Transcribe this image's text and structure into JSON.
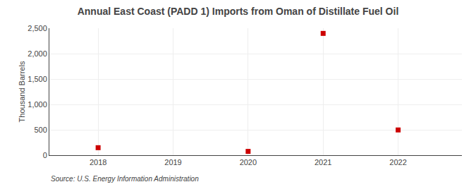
{
  "chart_data": {
    "type": "scatter",
    "title": "Annual East Coast (PADD 1) Imports from Oman of Distillate Fuel Oil",
    "ylabel": "Thousand Barrels",
    "source": "Source: U.S. Energy Information Administration",
    "x": [
      2018,
      2020,
      2021,
      2022
    ],
    "values": [
      148,
      75,
      2398,
      497
    ],
    "color": "#cc0000",
    "marker": "square",
    "xlim": [
      2017.35,
      2022.85
    ],
    "xticks": [
      2018,
      2019,
      2020,
      2021,
      2022
    ],
    "ylim": [
      0,
      2500
    ],
    "yticks": [
      0,
      500,
      {
        "value": 1000,
        "label": "1,000"
      },
      {
        "value": 1500,
        "label": "1,500"
      },
      {
        "value": 2000,
        "label": "2,000"
      },
      {
        "value": 2500,
        "label": "2,500"
      }
    ],
    "grid": true
  }
}
